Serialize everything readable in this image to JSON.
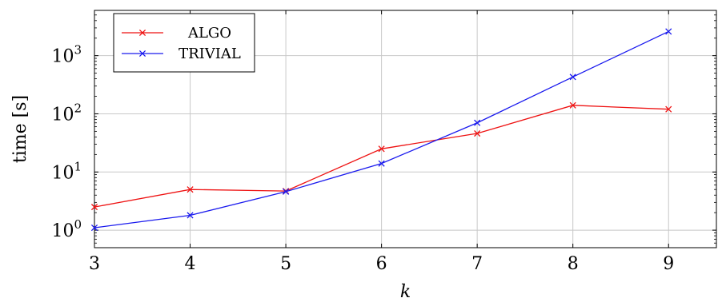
{
  "chart_data": {
    "type": "line",
    "x": [
      3,
      4,
      5,
      6,
      7,
      8,
      9
    ],
    "series": [
      {
        "name": "ALGO",
        "color": "#ee1111",
        "values": [
          2.5,
          5.0,
          4.7,
          25,
          46,
          140,
          120
        ]
      },
      {
        "name": "TRIVIAL",
        "color": "#1a1aee",
        "values": [
          1.1,
          1.8,
          4.6,
          14,
          70,
          430,
          2600
        ]
      }
    ],
    "xlabel": "k",
    "ylabel": "time [s]",
    "xlim": [
      3,
      9.5
    ],
    "ylim": [
      0.5,
      6000
    ],
    "y_scale": "log",
    "x_ticks": [
      "3",
      "4",
      "5",
      "6",
      "7",
      "8",
      "9"
    ],
    "y_ticks": [
      {
        "value": 1,
        "base": "10",
        "exp": "0"
      },
      {
        "value": 10,
        "base": "10",
        "exp": "1"
      },
      {
        "value": 100,
        "base": "10",
        "exp": "2"
      },
      {
        "value": 1000,
        "base": "10",
        "exp": "3"
      }
    ],
    "grid": true,
    "legend": "top-left",
    "marker": "x"
  }
}
